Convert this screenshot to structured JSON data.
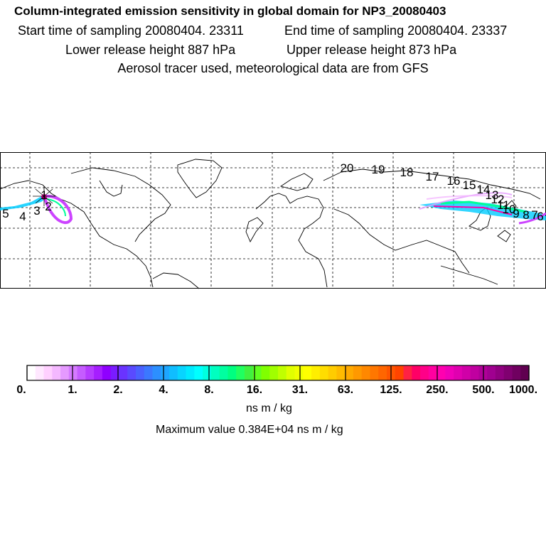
{
  "header": {
    "title": "Column-integrated emission sensitivity in global domain for NP3_20080403",
    "start_time": "Start time of sampling 20080404. 23311",
    "end_time": "End time of sampling 20080404. 23337",
    "lower_release": "Lower release height  887 hPa",
    "upper_release": "Upper release height  873 hPa",
    "tracer_note": "Aerosol tracer used, meteorological data are from GFS"
  },
  "map": {
    "trajectory_labels": [
      "5",
      "4",
      "3",
      "2",
      "1",
      "20",
      "19",
      "18",
      "17",
      "16",
      "15",
      "14",
      "13",
      "12",
      "11",
      "10",
      "9",
      "8",
      "7",
      "6"
    ],
    "colors": {
      "plume_low": "#cc44ff",
      "plume_mid": "#00ccff",
      "plume_high": "#00ff99",
      "plume_max": "#ff00aa"
    }
  },
  "colorbar": {
    "tick_labels": [
      "0.",
      "1.",
      "2.",
      "4.",
      "8.",
      "16.",
      "31.",
      "63.",
      "125.",
      "250.",
      "500.",
      "1000."
    ],
    "colors": [
      "#ffffff",
      "#ffe8ff",
      "#ffd0ff",
      "#f4b8ff",
      "#e59aff",
      "#d57aff",
      "#c55cff",
      "#b63cff",
      "#a61eff",
      "#8f00ff",
      "#7a1cff",
      "#6a33ff",
      "#5a4aff",
      "#4a61ff",
      "#3b78ff",
      "#2c8fff",
      "#1ea6ff",
      "#10bdff",
      "#08d4ff",
      "#00eaff",
      "#00ffff",
      "#00ffe0",
      "#00ffc0",
      "#00ffa0",
      "#00ff80",
      "#20ff60",
      "#40f040",
      "#60ff20",
      "#80ff00",
      "#a0ff00",
      "#c0ff00",
      "#e0ff00",
      "#f0ff00",
      "#ffff00",
      "#ffee00",
      "#ffdd00",
      "#ffcc00",
      "#ffbb00",
      "#ffaa00",
      "#ff9900",
      "#ff8800",
      "#ff7700",
      "#ff6600",
      "#ff5500",
      "#ff4400",
      "#ff2244",
      "#ff0066",
      "#ff0088",
      "#ff00a0",
      "#ff00b0",
      "#f000b8",
      "#e000b0",
      "#d000a8",
      "#c000a0",
      "#b00098",
      "#a00090",
      "#900080",
      "#800070",
      "#700060",
      "#600050"
    ],
    "units": "ns m / kg",
    "max_value": "Maximum value  0.384E+04 ns m / kg"
  }
}
